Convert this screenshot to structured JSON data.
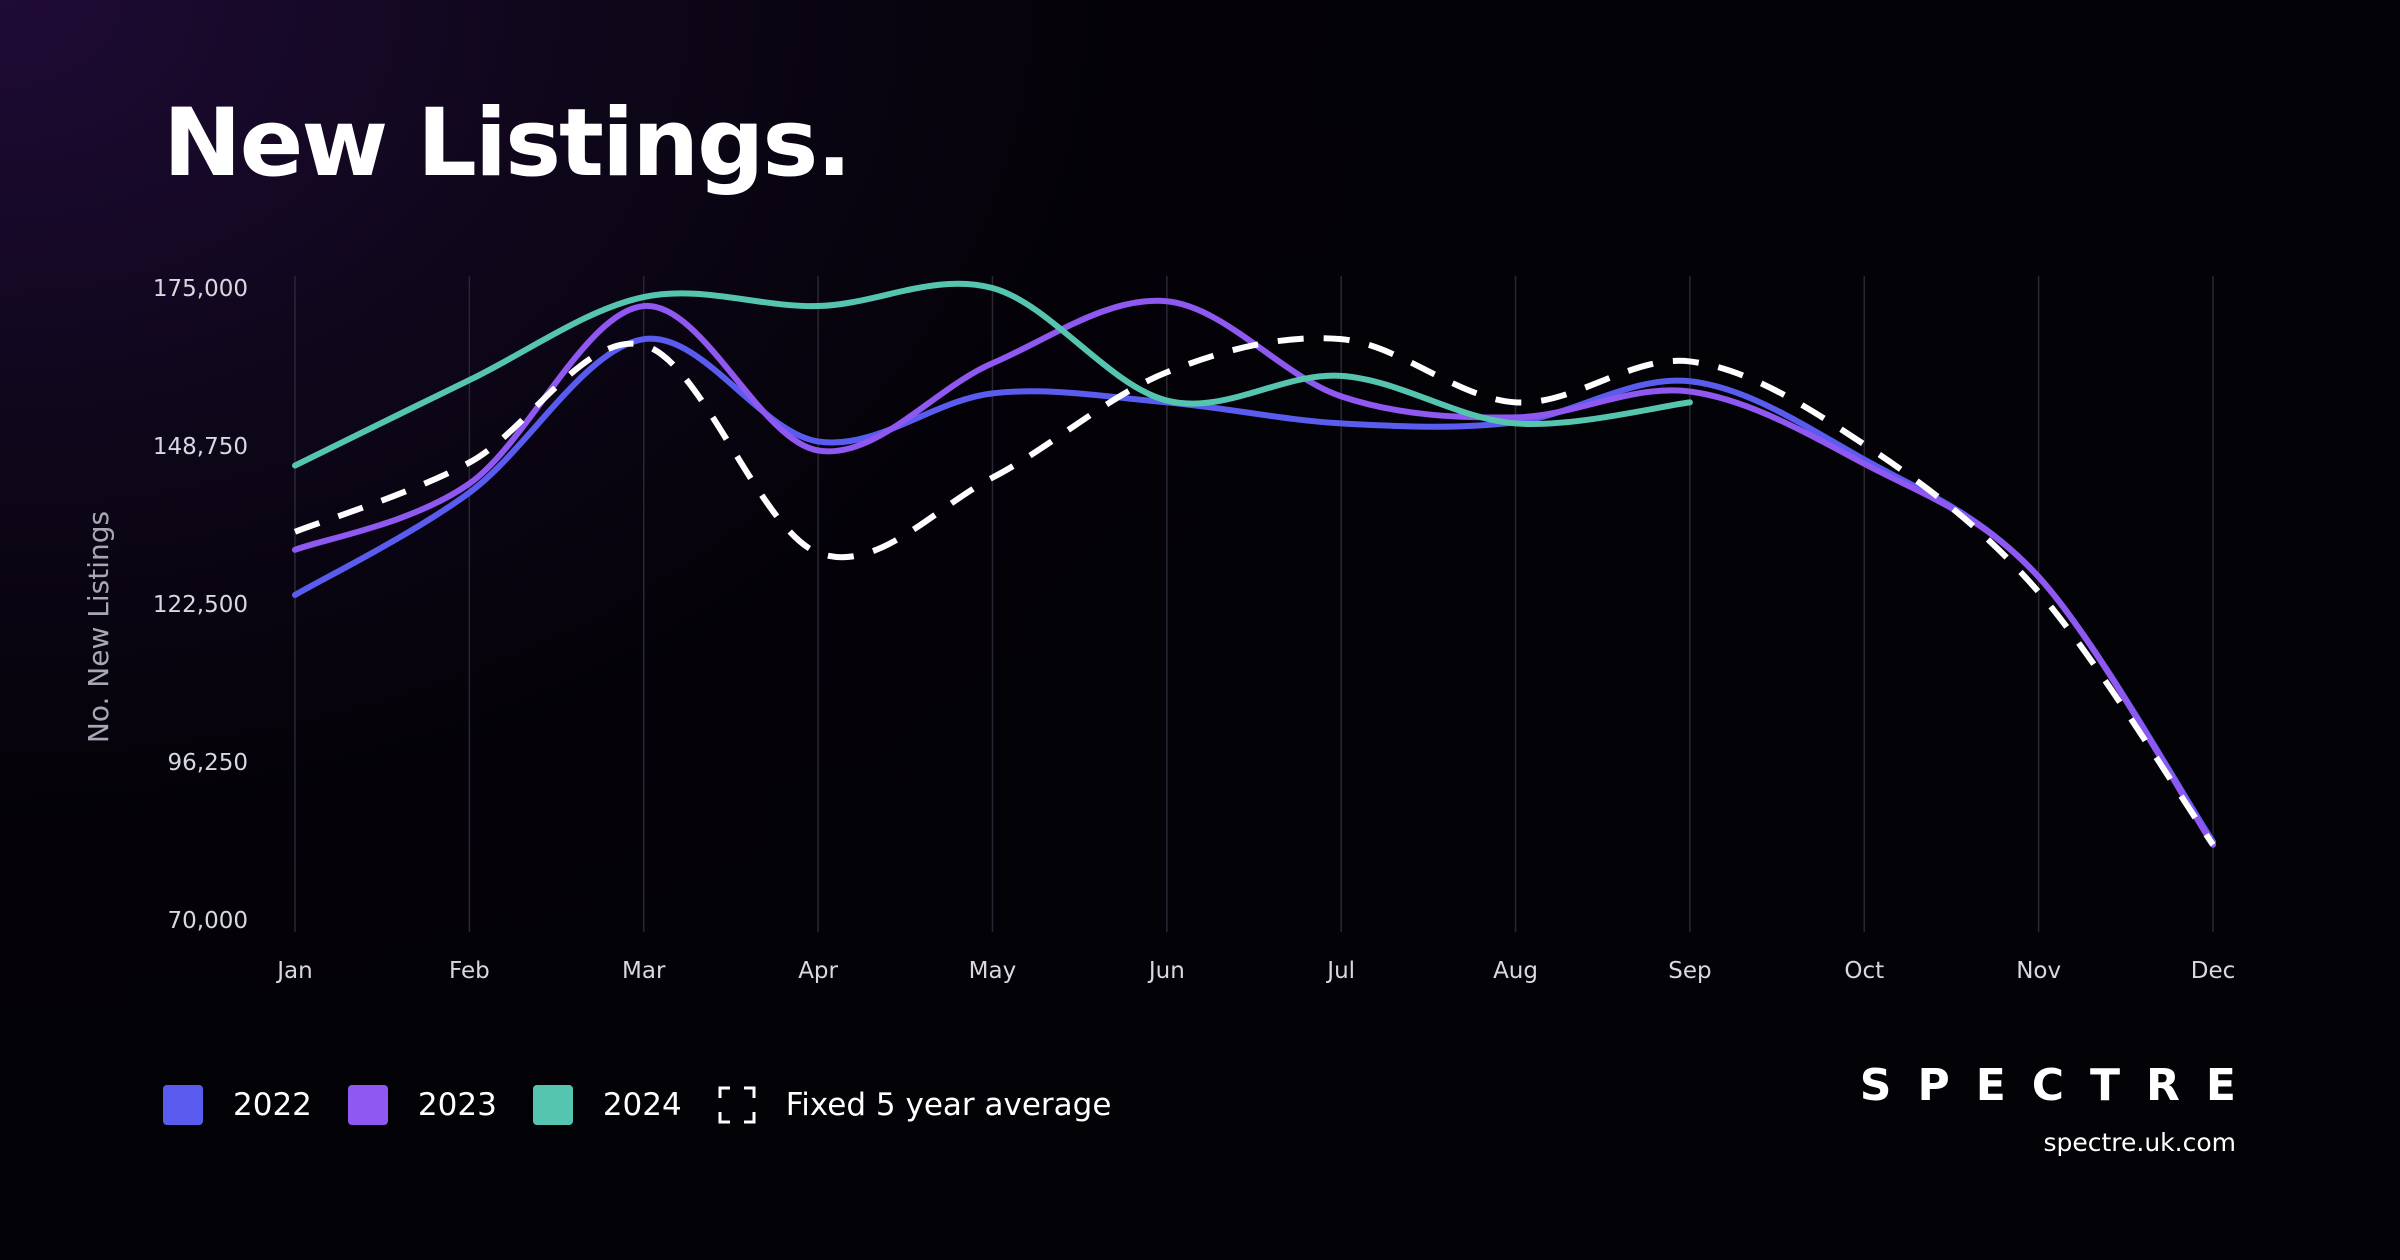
{
  "chart_data": {
    "type": "line",
    "title": "New Listings.",
    "ylabel": "No. New Listings",
    "xlabel": "",
    "ylim": [
      70000,
      175000
    ],
    "y_ticks": [
      70000,
      96250,
      122500,
      148750,
      175000
    ],
    "y_tick_labels": [
      "70,000",
      "96,250",
      "122,500",
      "148,750",
      "175,000"
    ],
    "categories": [
      "Jan",
      "Feb",
      "Mar",
      "Apr",
      "May",
      "Jun",
      "Jul",
      "Aug",
      "Sep",
      "Oct",
      "Nov",
      "Dec"
    ],
    "grid": "vertical",
    "legend_position": "bottom-left",
    "series": [
      {
        "name": "2022",
        "color": "#5a5cef",
        "dashed": false,
        "values": [
          124000,
          141000,
          166500,
          149500,
          157500,
          156000,
          152500,
          152700,
          159500,
          146500,
          127000,
          83000
        ]
      },
      {
        "name": "2023",
        "color": "#8f58f0",
        "dashed": false,
        "values": [
          131500,
          142500,
          172000,
          148000,
          162500,
          172800,
          157000,
          153500,
          157800,
          145800,
          127000,
          82500
        ]
      },
      {
        "name": "2024",
        "color": "#56c5b0",
        "dashed": false,
        "values": [
          145500,
          159700,
          173500,
          172000,
          175000,
          156300,
          160400,
          152500,
          156000,
          null,
          null,
          null
        ]
      },
      {
        "name": "Fixed 5 year average",
        "color": "#ffffff",
        "dashed": true,
        "values": [
          134500,
          146000,
          165500,
          131000,
          143500,
          161000,
          166500,
          156000,
          162800,
          149000,
          124500,
          82500
        ]
      }
    ]
  },
  "legend": {
    "items": [
      {
        "label": "2022",
        "color": "#5a5cef"
      },
      {
        "label": "2023",
        "color": "#8f58f0"
      },
      {
        "label": "2024",
        "color": "#56c5b0"
      },
      {
        "label": "Fixed 5 year average",
        "color": "#ffffff"
      }
    ]
  },
  "brand": {
    "logo_text": "SPECTRE",
    "url": "spectre.uk.com"
  }
}
